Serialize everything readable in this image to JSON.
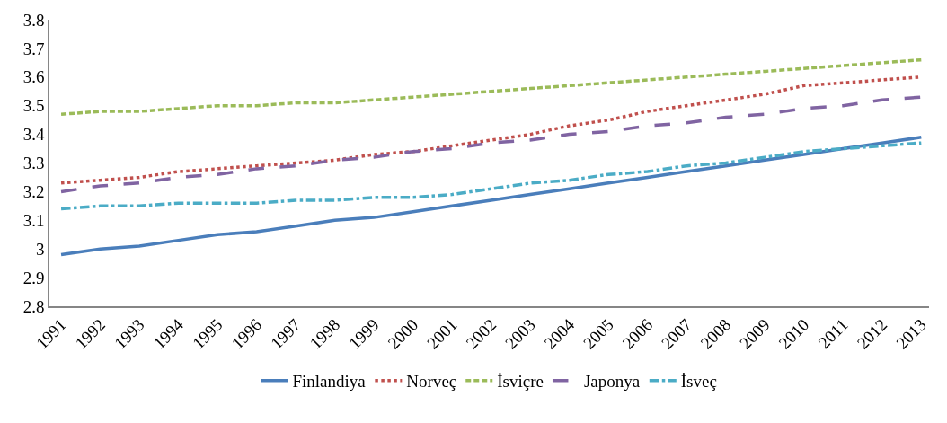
{
  "chart_data": {
    "type": "line",
    "categories": [
      "1991",
      "1992",
      "1993",
      "1994",
      "1995",
      "1996",
      "1997",
      "1998",
      "1999",
      "2000",
      "2001",
      "2002",
      "2003",
      "2004",
      "2005",
      "2006",
      "2007",
      "2008",
      "2009",
      "2010",
      "2011",
      "2012",
      "2013"
    ],
    "series": [
      {
        "name": "Finlandiya",
        "color": "#4a7ebb",
        "line_style": "solid",
        "values": [
          2.98,
          3.0,
          3.01,
          3.03,
          3.05,
          3.06,
          3.08,
          3.1,
          3.11,
          3.13,
          3.15,
          3.17,
          3.19,
          3.21,
          3.23,
          3.25,
          3.27,
          3.29,
          3.31,
          3.33,
          3.35,
          3.37,
          3.39
        ]
      },
      {
        "name": "Norveç",
        "color": "#c0504d",
        "line_style": "dotted",
        "values": [
          3.23,
          3.24,
          3.25,
          3.27,
          3.28,
          3.29,
          3.3,
          3.31,
          3.33,
          3.34,
          3.36,
          3.38,
          3.4,
          3.43,
          3.45,
          3.48,
          3.5,
          3.52,
          3.54,
          3.57,
          3.58,
          3.59,
          3.6
        ]
      },
      {
        "name": "İsviçre",
        "color": "#9bbb59",
        "line_style": "dashed",
        "values": [
          3.47,
          3.48,
          3.48,
          3.49,
          3.5,
          3.5,
          3.51,
          3.51,
          3.52,
          3.53,
          3.54,
          3.55,
          3.56,
          3.57,
          3.58,
          3.59,
          3.6,
          3.61,
          3.62,
          3.63,
          3.64,
          3.65,
          3.66
        ]
      },
      {
        "name": "Japonya",
        "color": "#8064a2",
        "line_style": "longdash",
        "values": [
          3.2,
          3.22,
          3.23,
          3.25,
          3.26,
          3.28,
          3.29,
          3.31,
          3.32,
          3.34,
          3.35,
          3.37,
          3.38,
          3.4,
          3.41,
          3.43,
          3.44,
          3.46,
          3.47,
          3.49,
          3.5,
          3.52,
          3.53
        ]
      },
      {
        "name": "İsveç",
        "color": "#4bacc6",
        "line_style": "dashdot",
        "values": [
          3.14,
          3.15,
          3.15,
          3.16,
          3.16,
          3.16,
          3.17,
          3.17,
          3.18,
          3.18,
          3.19,
          3.21,
          3.23,
          3.24,
          3.26,
          3.27,
          3.29,
          3.3,
          3.32,
          3.34,
          3.35,
          3.36,
          3.37
        ]
      }
    ],
    "ylim": [
      2.8,
      3.8
    ],
    "yticks": [
      2.8,
      2.9,
      3,
      3.1,
      3.2,
      3.3,
      3.4,
      3.5,
      3.6,
      3.7,
      3.8
    ],
    "grid": false,
    "legend": "bottom",
    "marker": "none"
  }
}
